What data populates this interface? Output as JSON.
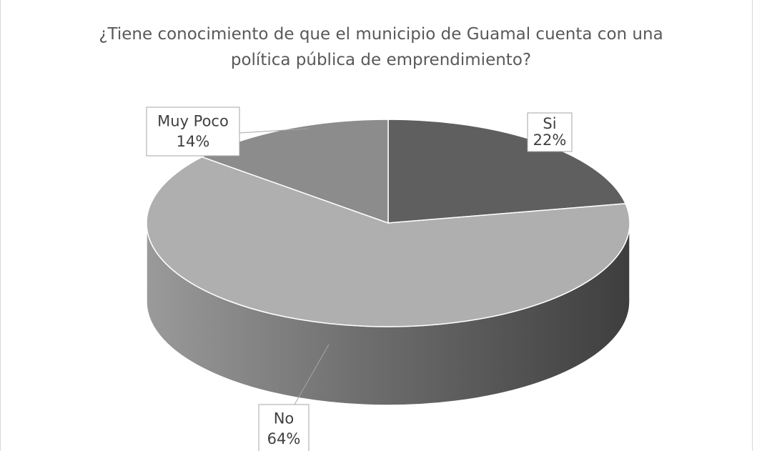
{
  "chart_data": {
    "type": "pie3d",
    "title": "¿Tiene conocimiento de que el municipio de Guamal cuenta con una política pública de emprendimiento?",
    "categories": [
      "Si",
      "No",
      "Muy Poco"
    ],
    "values": [
      22,
      64,
      14
    ],
    "value_labels": [
      "22%",
      "64%",
      "14%"
    ],
    "colors": [
      "#5f5f5f",
      "#afafaf",
      "#8c8c8c"
    ]
  }
}
